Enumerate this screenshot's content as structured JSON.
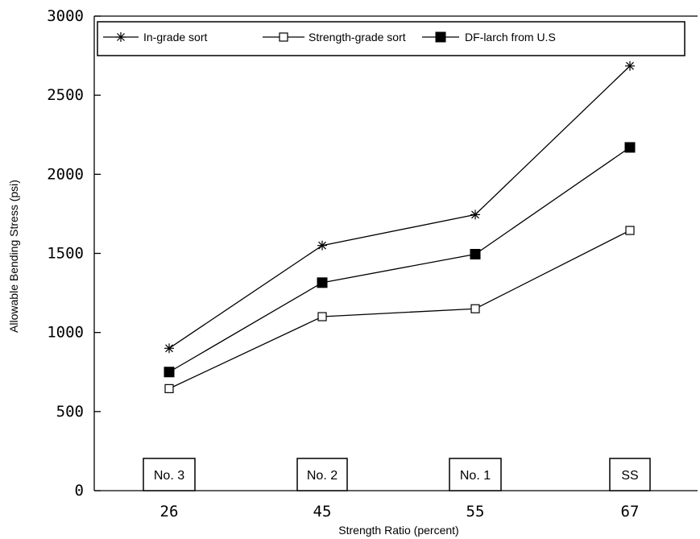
{
  "chart_data": {
    "type": "line",
    "title": "",
    "xlabel": "Strength Ratio (percent)",
    "ylabel": "Allowable Bending Stress (psi)",
    "categories": [
      "26",
      "45",
      "55",
      "67"
    ],
    "grades": [
      "No. 3",
      "No. 2",
      "No. 1",
      "SS"
    ],
    "ylim": [
      0,
      3000
    ],
    "yticks": [
      "0",
      "500",
      "1000",
      "1500",
      "2000",
      "2500",
      "3000"
    ],
    "grid": false,
    "legend_position": "top",
    "series": [
      {
        "name": "In-grade sort",
        "marker": "asterisk",
        "values": [
          900,
          1550,
          1745,
          2685
        ]
      },
      {
        "name": "Strength-grade sort",
        "marker": "open-square",
        "values": [
          645,
          1100,
          1150,
          1645
        ]
      },
      {
        "name": "DF-larch from U.S",
        "marker": "filled-square",
        "values": [
          750,
          1315,
          1495,
          2170
        ]
      }
    ],
    "colors": {
      "line": "#000000",
      "background": "#ffffff"
    }
  }
}
